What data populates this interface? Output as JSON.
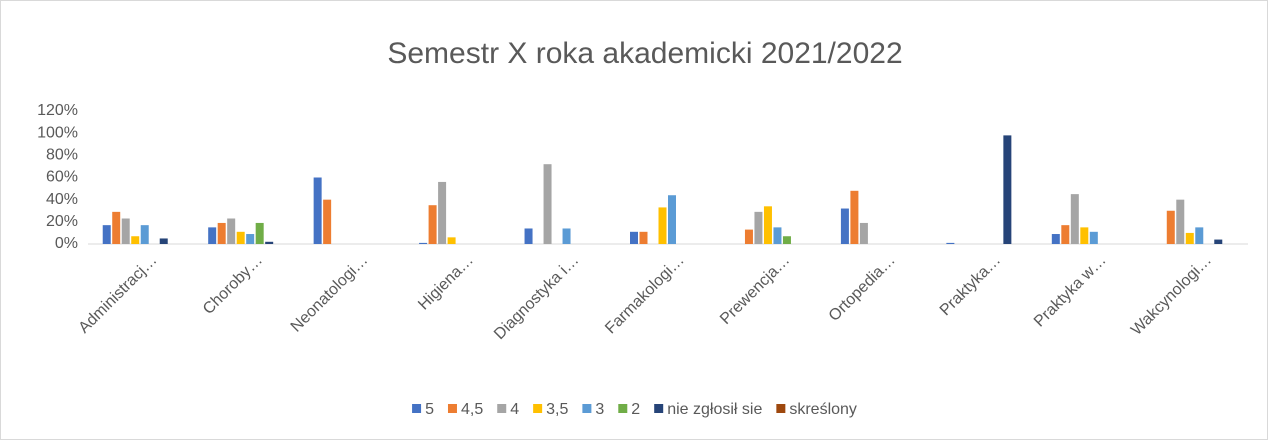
{
  "chart_data": {
    "type": "bar",
    "title": "Semestr X roka akademicki 2021/2022",
    "categories": [
      "Administracj…",
      "Choroby…",
      "Neonatologi…",
      "Higiena…",
      "Diagnostyka i…",
      "Farmakologi…",
      "Prewencja…",
      "Ortopedia…",
      "Praktyka…",
      "Praktyka w…",
      "Wakcynologi…"
    ],
    "series": [
      {
        "name": "5",
        "color": "#4472c4",
        "values": [
          17,
          15,
          60,
          1,
          14,
          11,
          0,
          32,
          1,
          9,
          0
        ]
      },
      {
        "name": "4,5",
        "color": "#ed7d31",
        "values": [
          29,
          19,
          40,
          35,
          0,
          11,
          13,
          48,
          0,
          17,
          30
        ]
      },
      {
        "name": "4",
        "color": "#a5a5a5",
        "values": [
          23,
          23,
          0,
          56,
          72,
          0,
          29,
          19,
          0,
          45,
          40
        ]
      },
      {
        "name": "3,5",
        "color": "#ffc000",
        "values": [
          7,
          11,
          0,
          6,
          0,
          33,
          34,
          0,
          0,
          15,
          10
        ]
      },
      {
        "name": "3",
        "color": "#5b9bd5",
        "values": [
          17,
          9,
          0,
          0,
          14,
          44,
          15,
          0,
          0,
          11,
          15
        ]
      },
      {
        "name": "2",
        "color": "#70ad47",
        "values": [
          0,
          19,
          0,
          0,
          0,
          0,
          7,
          0,
          0,
          0,
          0
        ]
      },
      {
        "name": "nie zgłosił sie",
        "color": "#264478",
        "values": [
          5,
          2,
          0,
          0,
          0,
          0,
          0,
          0,
          98,
          0,
          4
        ]
      },
      {
        "name": "skreślony",
        "color": "#9e480e",
        "values": [
          0,
          0,
          0,
          0,
          0,
          0,
          0,
          0,
          0,
          0,
          0
        ]
      }
    ],
    "ylim": [
      0,
      120
    ],
    "yticks": [
      {
        "value": 0,
        "label": "0%"
      },
      {
        "value": 20,
        "label": "20%"
      },
      {
        "value": 40,
        "label": "40%"
      },
      {
        "value": 60,
        "label": "60%"
      },
      {
        "value": 80,
        "label": "80%"
      },
      {
        "value": 100,
        "label": "100%"
      },
      {
        "value": 120,
        "label": "120%"
      }
    ],
    "grid": false,
    "legend": "bottom"
  }
}
